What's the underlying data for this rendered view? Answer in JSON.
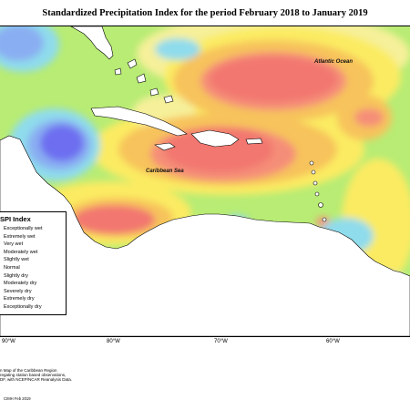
{
  "title": "Standardized Precipitation Index for the period February 2018 to January 2019",
  "map": {
    "labels": {
      "atlantic": "Atlantic Ocean",
      "caribbean": "Caribbean Sea"
    },
    "colors": {
      "background": "#b8ec74",
      "yellow": "#fbeb62",
      "light_yellow": "#f6f09a",
      "orange": "#f7c35c",
      "salmon": "#f58e78",
      "red": "#f2776f",
      "cyan": "#8fdcec",
      "light_blue": "#8aaef2",
      "blue": "#6d6ef0",
      "land": "#ffffff",
      "coast": "#000000"
    }
  },
  "legend": {
    "title": "SPI Index",
    "items": [
      "Exceptionally wet",
      "Extremely wet",
      "Very wet",
      "Moderately wet",
      "Slightly wet",
      "Normal",
      "Slightly dry",
      "Moderately dry",
      "Severely dry",
      "Extremely dry",
      "Exceptionally dry"
    ]
  },
  "axis": {
    "ticks": [
      "90°W",
      "80°W",
      "70°W",
      "60°W"
    ]
  },
  "notes": "n Map of the Caribbean Region\nregating station based observations,\nDF, with NCEP/NCAR Reanalysis Data.",
  "credit": "CIMH Feb 2019"
}
